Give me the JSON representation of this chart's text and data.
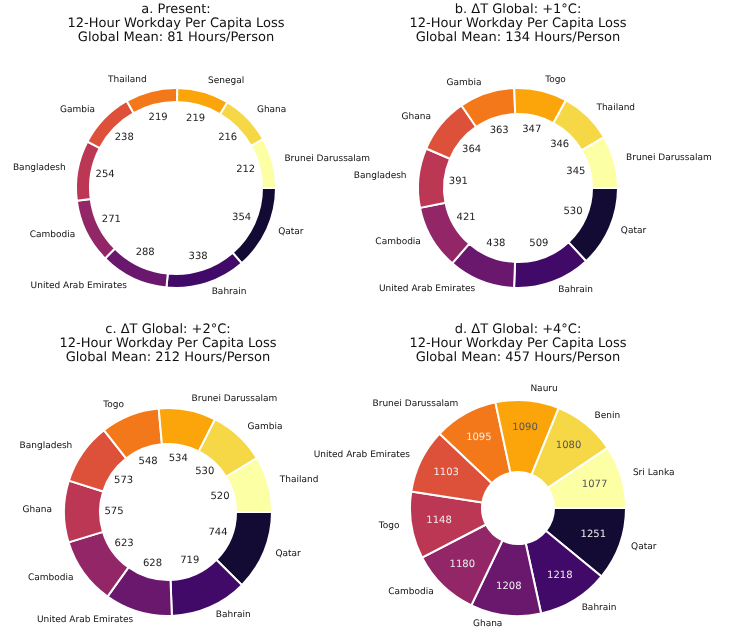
{
  "chart_data": [
    {
      "type": "donut",
      "title": "a. Present:",
      "subtitle": "12-Hour Workday Per Capita Loss\nGlobal Mean: 81 Hours/Person",
      "categories": [
        "Qatar",
        "Bahrain",
        "United Arab Emirates",
        "Cambodia",
        "Bangladesh",
        "Gambia",
        "Thailand",
        "Senegal",
        "Ghana",
        "Brunei Darussalam"
      ],
      "values": [
        354,
        338,
        288,
        271,
        254,
        238,
        219,
        219,
        216,
        212
      ],
      "colors": [
        "#140b34",
        "#420a68",
        "#6a176e",
        "#932667",
        "#bc3754",
        "#dd513a",
        "#f37819",
        "#fca50a",
        "#f6d746",
        "#fcffa4"
      ],
      "data_labels": true,
      "legend": false
    },
    {
      "type": "donut",
      "title": "b. ΔT Global: +1°C:",
      "subtitle": "12-Hour Workday Per Capita Loss\nGlobal Mean: 134 Hours/Person",
      "categories": [
        "Qatar",
        "Bahrain",
        "United Arab Emirates",
        "Cambodia",
        "Bangladesh",
        "Ghana",
        "Gambia",
        "Togo",
        "Thailand",
        "Brunei Darussalam"
      ],
      "values": [
        530,
        509,
        438,
        421,
        391,
        364,
        363,
        347,
        346,
        345
      ],
      "colors": [
        "#140b34",
        "#420a68",
        "#6a176e",
        "#932667",
        "#bc3754",
        "#dd513a",
        "#f37819",
        "#fca50a",
        "#f6d746",
        "#fcffa4"
      ],
      "data_labels": true,
      "legend": false
    },
    {
      "type": "donut",
      "title": "c. ΔT Global: +2°C:",
      "subtitle": "12-Hour Workday Per Capita Loss\nGlobal Mean: 212 Hours/Person",
      "categories": [
        "Qatar",
        "Bahrain",
        "United Arab Emirates",
        "Cambodia",
        "Ghana",
        "Bangladesh",
        "Togo",
        "Brunei Darussalam",
        "Gambia",
        "Thailand"
      ],
      "values": [
        744,
        719,
        628,
        623,
        575,
        573,
        548,
        534,
        530,
        520
      ],
      "colors": [
        "#140b34",
        "#420a68",
        "#6a176e",
        "#932667",
        "#bc3754",
        "#dd513a",
        "#f37819",
        "#fca50a",
        "#f6d746",
        "#fcffa4"
      ],
      "data_labels": true,
      "legend": false
    },
    {
      "type": "donut",
      "title": "d. ΔT Global: +4°C:",
      "subtitle": "12-Hour Workday Per Capita Loss\nGlobal Mean: 457 Hours/Person",
      "categories": [
        "Qatar",
        "Bahrain",
        "Ghana",
        "Cambodia",
        "Togo",
        "United Arab Emirates",
        "Brunei Darussalam",
        "Nauru",
        "Benin",
        "Sri Lanka"
      ],
      "values": [
        1251,
        1218,
        1208,
        1180,
        1148,
        1103,
        1095,
        1090,
        1080,
        1077
      ],
      "colors": [
        "#140b34",
        "#420a68",
        "#6a176e",
        "#932667",
        "#bc3754",
        "#dd513a",
        "#f37819",
        "#fca50a",
        "#f6d746",
        "#fcffa4"
      ],
      "data_labels": true,
      "legend": false
    }
  ]
}
